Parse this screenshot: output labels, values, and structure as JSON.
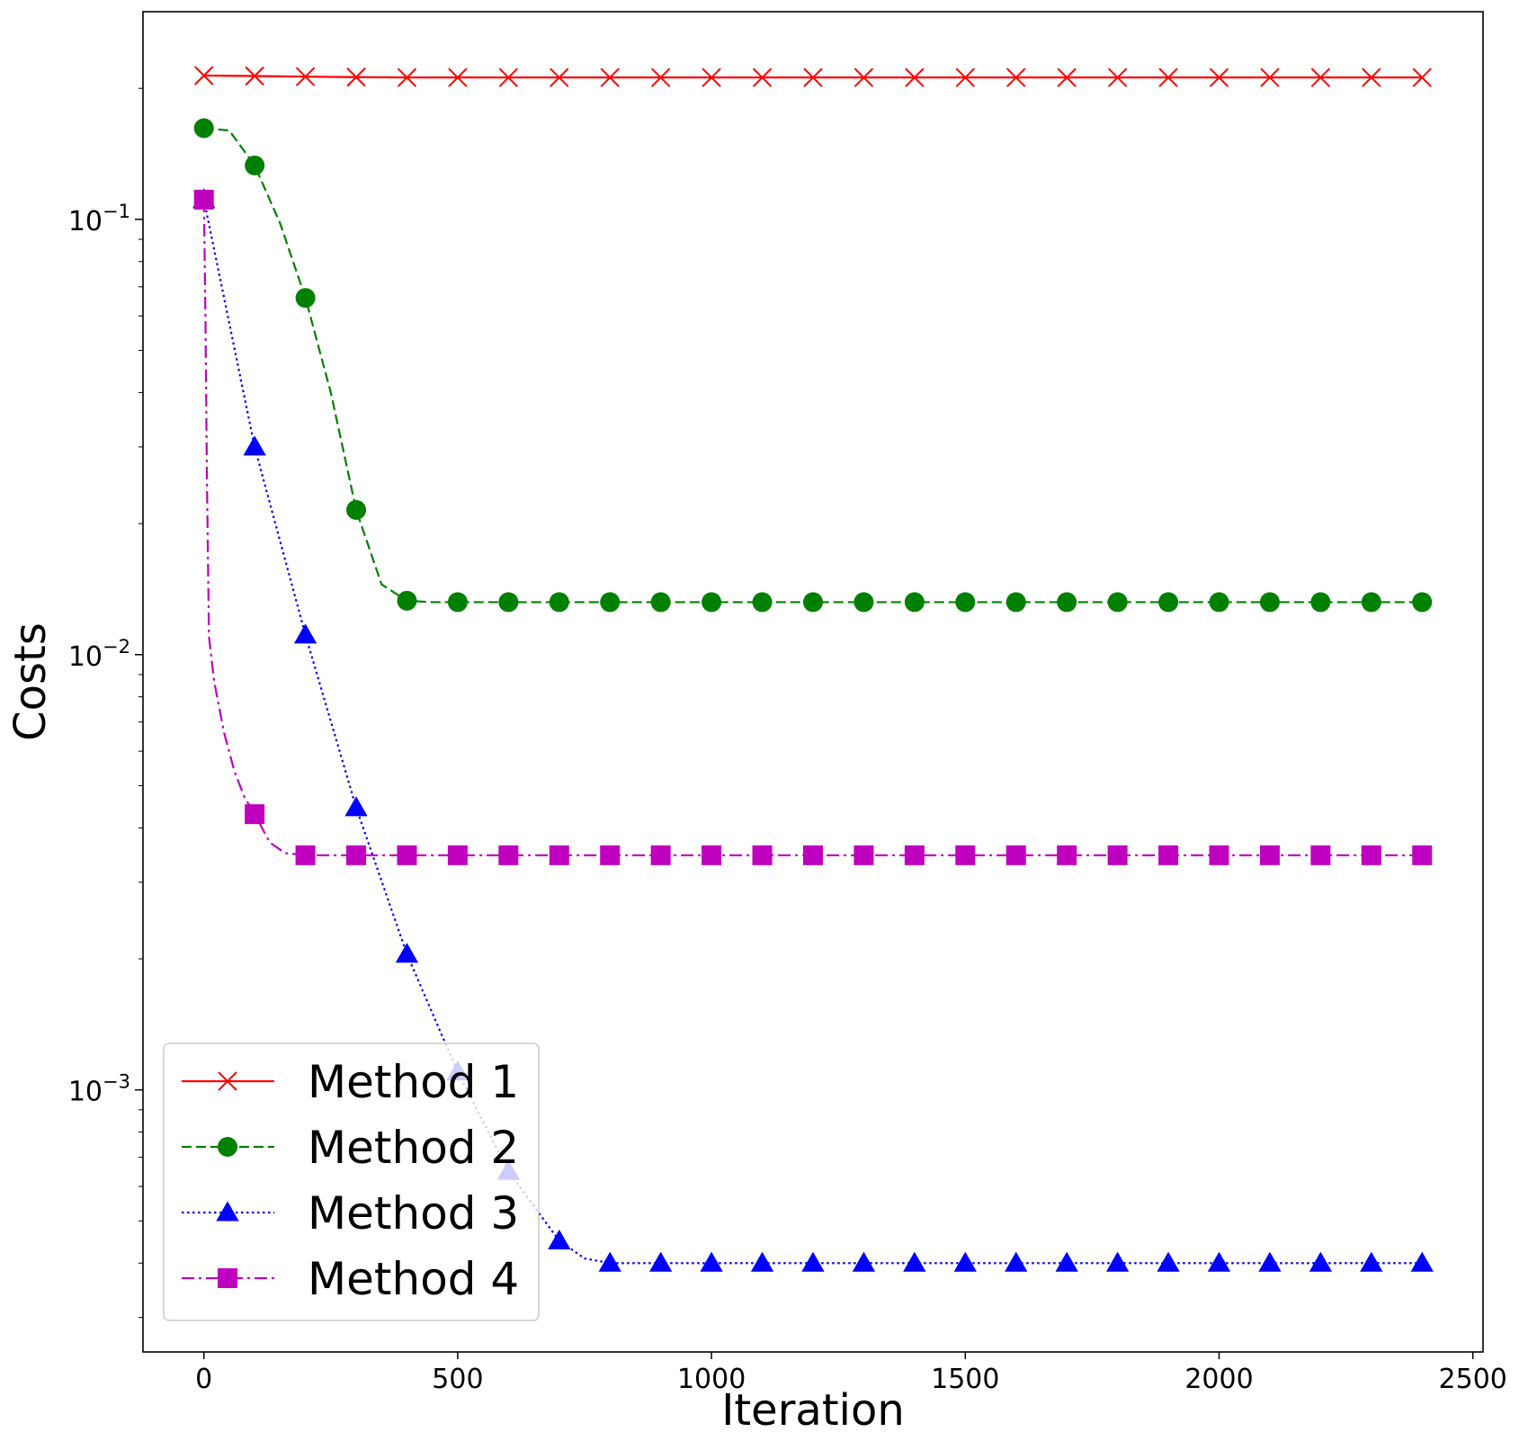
{
  "chart_data": {
    "type": "line",
    "title": "",
    "xlabel": "Iteration",
    "ylabel": "Costs",
    "yscale": "log",
    "xlim": [
      -120,
      2520
    ],
    "ylim": [
      0.00025,
      0.3
    ],
    "xticks": [
      0,
      500,
      1000,
      1500,
      2000,
      2500
    ],
    "xtick_labels": [
      "0",
      "500",
      "1000",
      "1500",
      "2000",
      "2500"
    ],
    "yticks": [
      {
        "value": 0.1,
        "base": "10",
        "exp": "−1"
      },
      {
        "value": 0.01,
        "base": "10",
        "exp": "−2"
      },
      {
        "value": 0.001,
        "base": "10",
        "exp": "−3"
      }
    ],
    "grid": false,
    "legend_position": "lower-left",
    "series": [
      {
        "name": "Method 1",
        "color": "#ff0000",
        "marker": "x",
        "dash": "solid",
        "line_points": [
          [
            0,
            0.214
          ],
          [
            100,
            0.2135
          ],
          [
            200,
            0.2128
          ],
          [
            300,
            0.2122
          ],
          [
            400,
            0.2118
          ],
          [
            2400,
            0.2118
          ]
        ],
        "marker_x": [
          0,
          100,
          200,
          300,
          400,
          500,
          600,
          700,
          800,
          900,
          1000,
          1100,
          1200,
          1300,
          1400,
          1500,
          1600,
          1700,
          1800,
          1900,
          2000,
          2100,
          2200,
          2300,
          2400
        ],
        "marker_y": [
          0.214,
          0.2135,
          0.2128,
          0.2122,
          0.2118,
          0.2118,
          0.2118,
          0.2118,
          0.2118,
          0.2118,
          0.2118,
          0.2118,
          0.2118,
          0.2118,
          0.2118,
          0.2118,
          0.2118,
          0.2118,
          0.2118,
          0.2118,
          0.2118,
          0.2118,
          0.2118,
          0.2118,
          0.2118
        ]
      },
      {
        "name": "Method 2",
        "color": "#008000",
        "marker": "circle",
        "dash": "dashed",
        "line_points": [
          [
            0,
            0.162
          ],
          [
            50,
            0.16
          ],
          [
            100,
            0.133
          ],
          [
            150,
            0.098
          ],
          [
            200,
            0.066
          ],
          [
            250,
            0.04
          ],
          [
            300,
            0.0215
          ],
          [
            350,
            0.0145
          ],
          [
            400,
            0.0133
          ],
          [
            450,
            0.0132
          ],
          [
            2400,
            0.0132
          ]
        ],
        "marker_x": [
          0,
          100,
          200,
          300,
          400,
          500,
          600,
          700,
          800,
          900,
          1000,
          1100,
          1200,
          1300,
          1400,
          1500,
          1600,
          1700,
          1800,
          1900,
          2000,
          2100,
          2200,
          2300,
          2400
        ],
        "marker_y": [
          0.162,
          0.133,
          0.066,
          0.0215,
          0.0133,
          0.0132,
          0.0132,
          0.0132,
          0.0132,
          0.0132,
          0.0132,
          0.0132,
          0.0132,
          0.0132,
          0.0132,
          0.0132,
          0.0132,
          0.0132,
          0.0132,
          0.0132,
          0.0132,
          0.0132,
          0.0132,
          0.0132,
          0.0132
        ]
      },
      {
        "name": "Method 3",
        "color": "#0000ff",
        "marker": "triangle",
        "dash": "dotted",
        "line_points": [
          [
            0,
            0.111
          ],
          [
            100,
            0.03
          ],
          [
            200,
            0.0111
          ],
          [
            300,
            0.00445
          ],
          [
            400,
            0.00205
          ],
          [
            500,
            0.0011
          ],
          [
            600,
            0.00065
          ],
          [
            700,
            0.00045
          ],
          [
            750,
            0.00041
          ],
          [
            800,
            0.0004
          ],
          [
            2400,
            0.0004
          ]
        ],
        "marker_x": [
          0,
          100,
          200,
          300,
          400,
          500,
          600,
          700,
          800,
          900,
          1000,
          1100,
          1200,
          1300,
          1400,
          1500,
          1600,
          1700,
          1800,
          1900,
          2000,
          2100,
          2200,
          2300,
          2400
        ],
        "marker_y": [
          0.111,
          0.03,
          0.0111,
          0.00445,
          0.00205,
          0.0011,
          0.00065,
          0.00045,
          0.0004,
          0.0004,
          0.0004,
          0.0004,
          0.0004,
          0.0004,
          0.0004,
          0.0004,
          0.0004,
          0.0004,
          0.0004,
          0.0004,
          0.0004,
          0.0004,
          0.0004,
          0.0004,
          0.0004
        ]
      },
      {
        "name": "Method 4",
        "color": "#bf00bf",
        "marker": "square",
        "dash": "dashdot",
        "line_points": [
          [
            0,
            0.111
          ],
          [
            3,
            0.06
          ],
          [
            6,
            0.025
          ],
          [
            10,
            0.011
          ],
          [
            20,
            0.0087
          ],
          [
            40,
            0.0066
          ],
          [
            60,
            0.0054
          ],
          [
            80,
            0.0047
          ],
          [
            100,
            0.0043
          ],
          [
            130,
            0.0037
          ],
          [
            160,
            0.0035
          ],
          [
            200,
            0.00346
          ],
          [
            2400,
            0.00346
          ]
        ],
        "marker_x": [
          0,
          100,
          200,
          300,
          400,
          500,
          600,
          700,
          800,
          900,
          1000,
          1100,
          1200,
          1300,
          1400,
          1500,
          1600,
          1700,
          1800,
          1900,
          2000,
          2100,
          2200,
          2300,
          2400
        ],
        "marker_y": [
          0.111,
          0.0043,
          0.00346,
          0.00346,
          0.00346,
          0.00346,
          0.00346,
          0.00346,
          0.00346,
          0.00346,
          0.00346,
          0.00346,
          0.00346,
          0.00346,
          0.00346,
          0.00346,
          0.00346,
          0.00346,
          0.00346,
          0.00346,
          0.00346,
          0.00346,
          0.00346,
          0.00346,
          0.00346
        ]
      }
    ]
  }
}
